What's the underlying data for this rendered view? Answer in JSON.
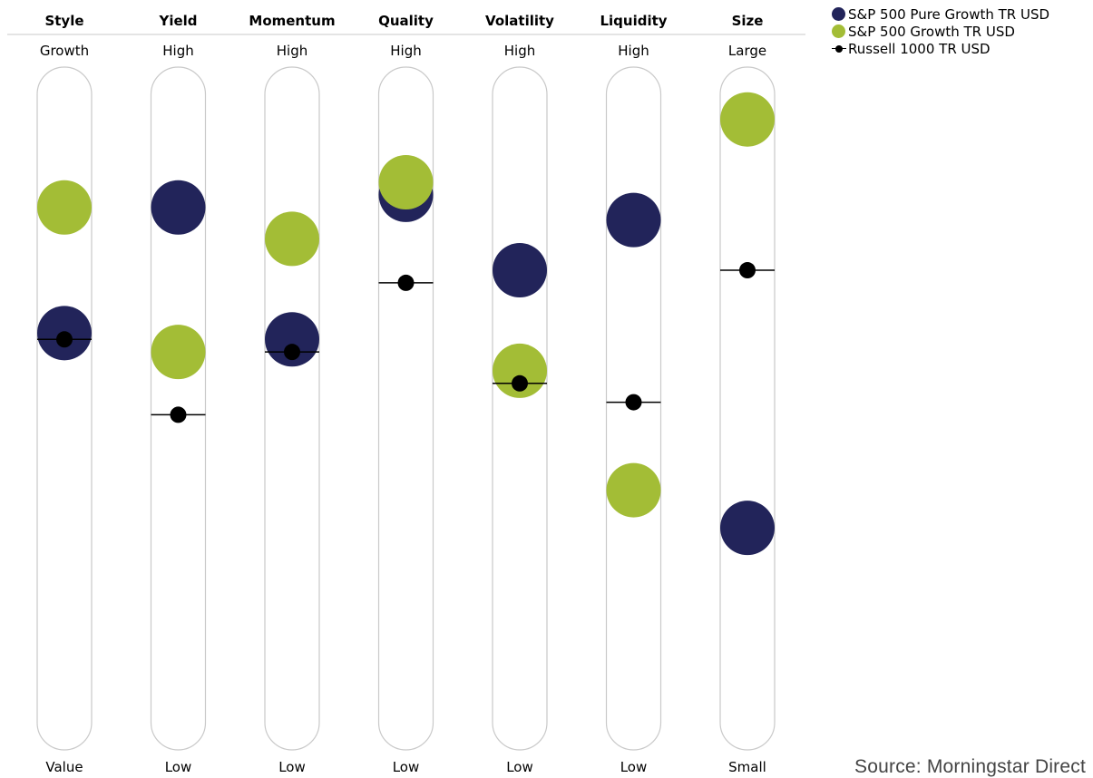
{
  "chart_data": {
    "type": "scatter",
    "factors": [
      {
        "name": "Style",
        "top_label": "Growth",
        "bottom_label": "Value"
      },
      {
        "name": "Yield",
        "top_label": "High",
        "bottom_label": "Low"
      },
      {
        "name": "Momentum",
        "top_label": "High",
        "bottom_label": "Low"
      },
      {
        "name": "Quality",
        "top_label": "High",
        "bottom_label": "Low"
      },
      {
        "name": "Volatility",
        "top_label": "High",
        "bottom_label": "Low"
      },
      {
        "name": "Liquidity",
        "top_label": "High",
        "bottom_label": "Low"
      },
      {
        "name": "Size",
        "top_label": "Large",
        "bottom_label": "Small"
      }
    ],
    "ylim": [
      0,
      100
    ],
    "series": [
      {
        "name": "S&P 500 Pure Growth TR USD",
        "color": "#22245a",
        "marker": "large-circle",
        "values": [
          62,
          82,
          61,
          84,
          72,
          80,
          31
        ]
      },
      {
        "name": "S&P 500 Growth TR USD",
        "color": "#a3bd36",
        "marker": "large-circle",
        "values": [
          82,
          59,
          77,
          86,
          56,
          37,
          96
        ]
      },
      {
        "name": "Russell 1000 TR USD",
        "color": "#000000",
        "marker": "dot-with-line",
        "values": [
          61,
          49,
          59,
          70,
          54,
          51,
          72
        ]
      }
    ]
  },
  "source": "Source: Morningstar Direct"
}
